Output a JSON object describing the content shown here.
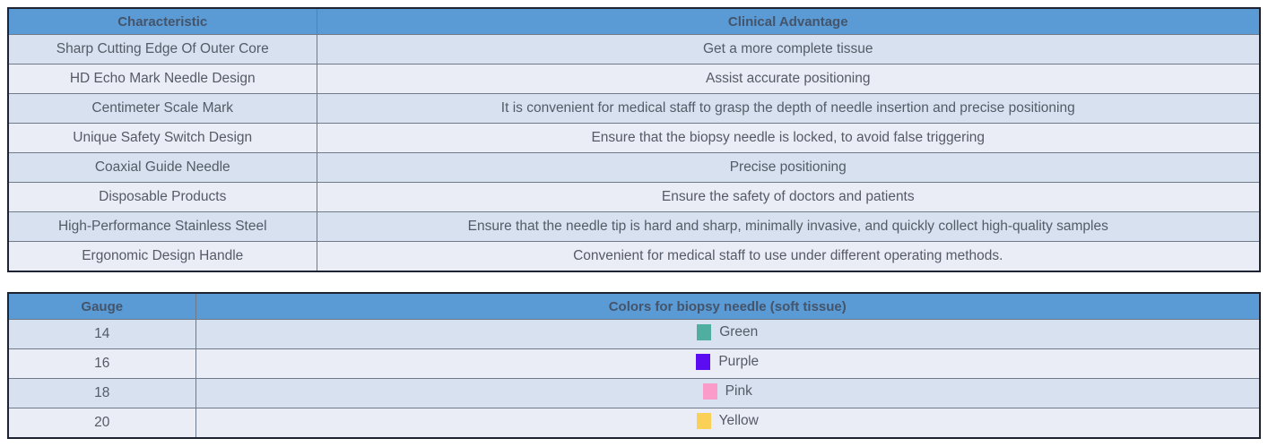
{
  "theme": {
    "header_bg": "#5b9bd5",
    "header_text": "#44546a",
    "row_band_dark": "#d7e1f0",
    "row_band_light": "#eaedf6",
    "body_text": "#545b66",
    "inner_border": "#6f7b8a",
    "outer_border": "#1d2330"
  },
  "table1": {
    "headers": [
      "Characteristic",
      "Clinical Advantage"
    ],
    "rows": [
      {
        "characteristic": "Sharp Cutting Edge Of Outer Core",
        "advantage": "Get a more complete tissue"
      },
      {
        "characteristic": "HD Echo Mark Needle Design",
        "advantage": "Assist accurate positioning"
      },
      {
        "characteristic": "Centimeter Scale Mark",
        "advantage": "It is convenient for medical staff to grasp the depth of needle insertion and precise positioning"
      },
      {
        "characteristic": "Unique Safety Switch Design",
        "advantage": "Ensure that the biopsy needle is locked, to avoid false triggering"
      },
      {
        "characteristic": "Coaxial Guide Needle",
        "advantage": "Precise positioning"
      },
      {
        "characteristic": "Disposable Products",
        "advantage": "Ensure the safety of doctors and patients"
      },
      {
        "characteristic": "High-Performance Stainless Steel",
        "advantage": "Ensure that the needle tip is hard and sharp, minimally invasive, and quickly collect high-quality samples"
      },
      {
        "characteristic": "Ergonomic Design Handle",
        "advantage": "Convenient for medical staff to use under different operating methods."
      }
    ]
  },
  "table2": {
    "headers": [
      "Gauge",
      "Colors for biopsy needle (soft tissue)"
    ],
    "rows": [
      {
        "gauge": "14",
        "color_name": "Green",
        "swatch": "#4fae9f"
      },
      {
        "gauge": "16",
        "color_name": "Purple",
        "swatch": "#5b0cf0"
      },
      {
        "gauge": "18",
        "color_name": "Pink",
        "swatch": "#fb9bca"
      },
      {
        "gauge": "20",
        "color_name": "Yellow",
        "swatch": "#fad156"
      }
    ]
  }
}
